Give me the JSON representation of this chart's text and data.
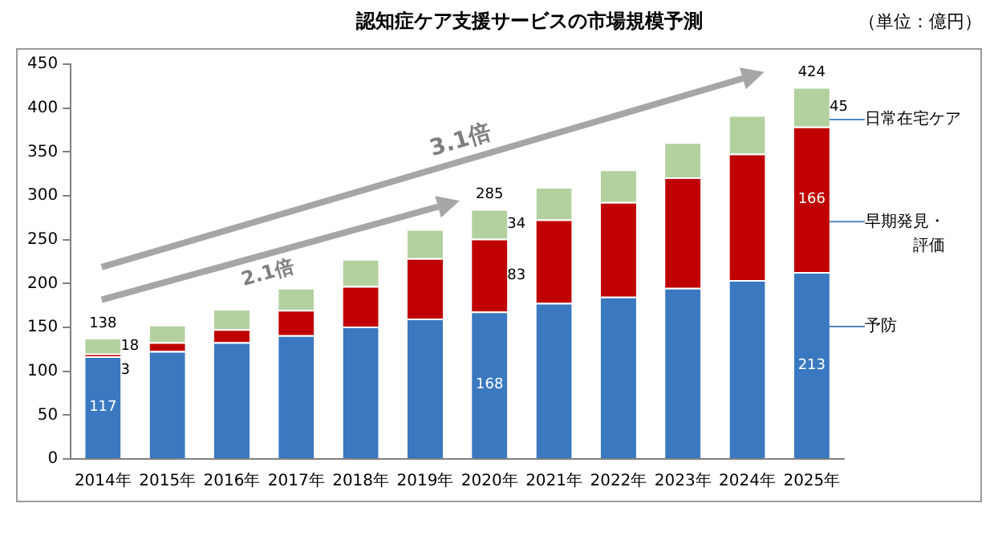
{
  "chart_data": {
    "type": "bar",
    "title": "認知症ケア支援サービスの市場規模予測",
    "stacked": true,
    "legend": false,
    "grid": false,
    "categories": [
      "2014年",
      "2015年",
      "2016年",
      "2017年",
      "2018年",
      "2019年",
      "2020年",
      "2021年",
      "2022年",
      "2023年",
      "2024年",
      "2025年"
    ],
    "series": [
      {
        "name": "予防",
        "color": "#3a78c0",
        "values": [
          117,
          123,
          133,
          141,
          151,
          160,
          168,
          178,
          185,
          195,
          204,
          213
        ],
        "value_labels": [
          "117",
          null,
          null,
          null,
          null,
          null,
          "168",
          null,
          null,
          null,
          null,
          "213"
        ]
      },
      {
        "name": "早期発見・評価",
        "color": "#c00000",
        "values": [
          3,
          10,
          15,
          29,
          46,
          69,
          83,
          95,
          108,
          126,
          144,
          166
        ],
        "value_labels": [
          "3",
          null,
          null,
          null,
          null,
          null,
          "83",
          null,
          null,
          null,
          null,
          "166"
        ]
      },
      {
        "name": "日常在宅ケア",
        "color": "#b3d19f",
        "values": [
          18,
          20,
          23,
          25,
          31,
          33,
          34,
          37,
          37,
          40,
          44,
          45
        ],
        "value_labels": [
          "18",
          null,
          null,
          null,
          null,
          null,
          "34",
          null,
          null,
          null,
          null,
          "45"
        ]
      }
    ],
    "totals": [
      "138",
      null,
      null,
      null,
      null,
      null,
      "285",
      null,
      null,
      null,
      null,
      "424"
    ],
    "ylim": [
      0,
      450
    ],
    "yticks": [
      0,
      50,
      100,
      150,
      200,
      250,
      300,
      350,
      400,
      450
    ],
    "annotations": [
      "（単位：億円）",
      "2.1倍",
      "3.1倍"
    ]
  }
}
